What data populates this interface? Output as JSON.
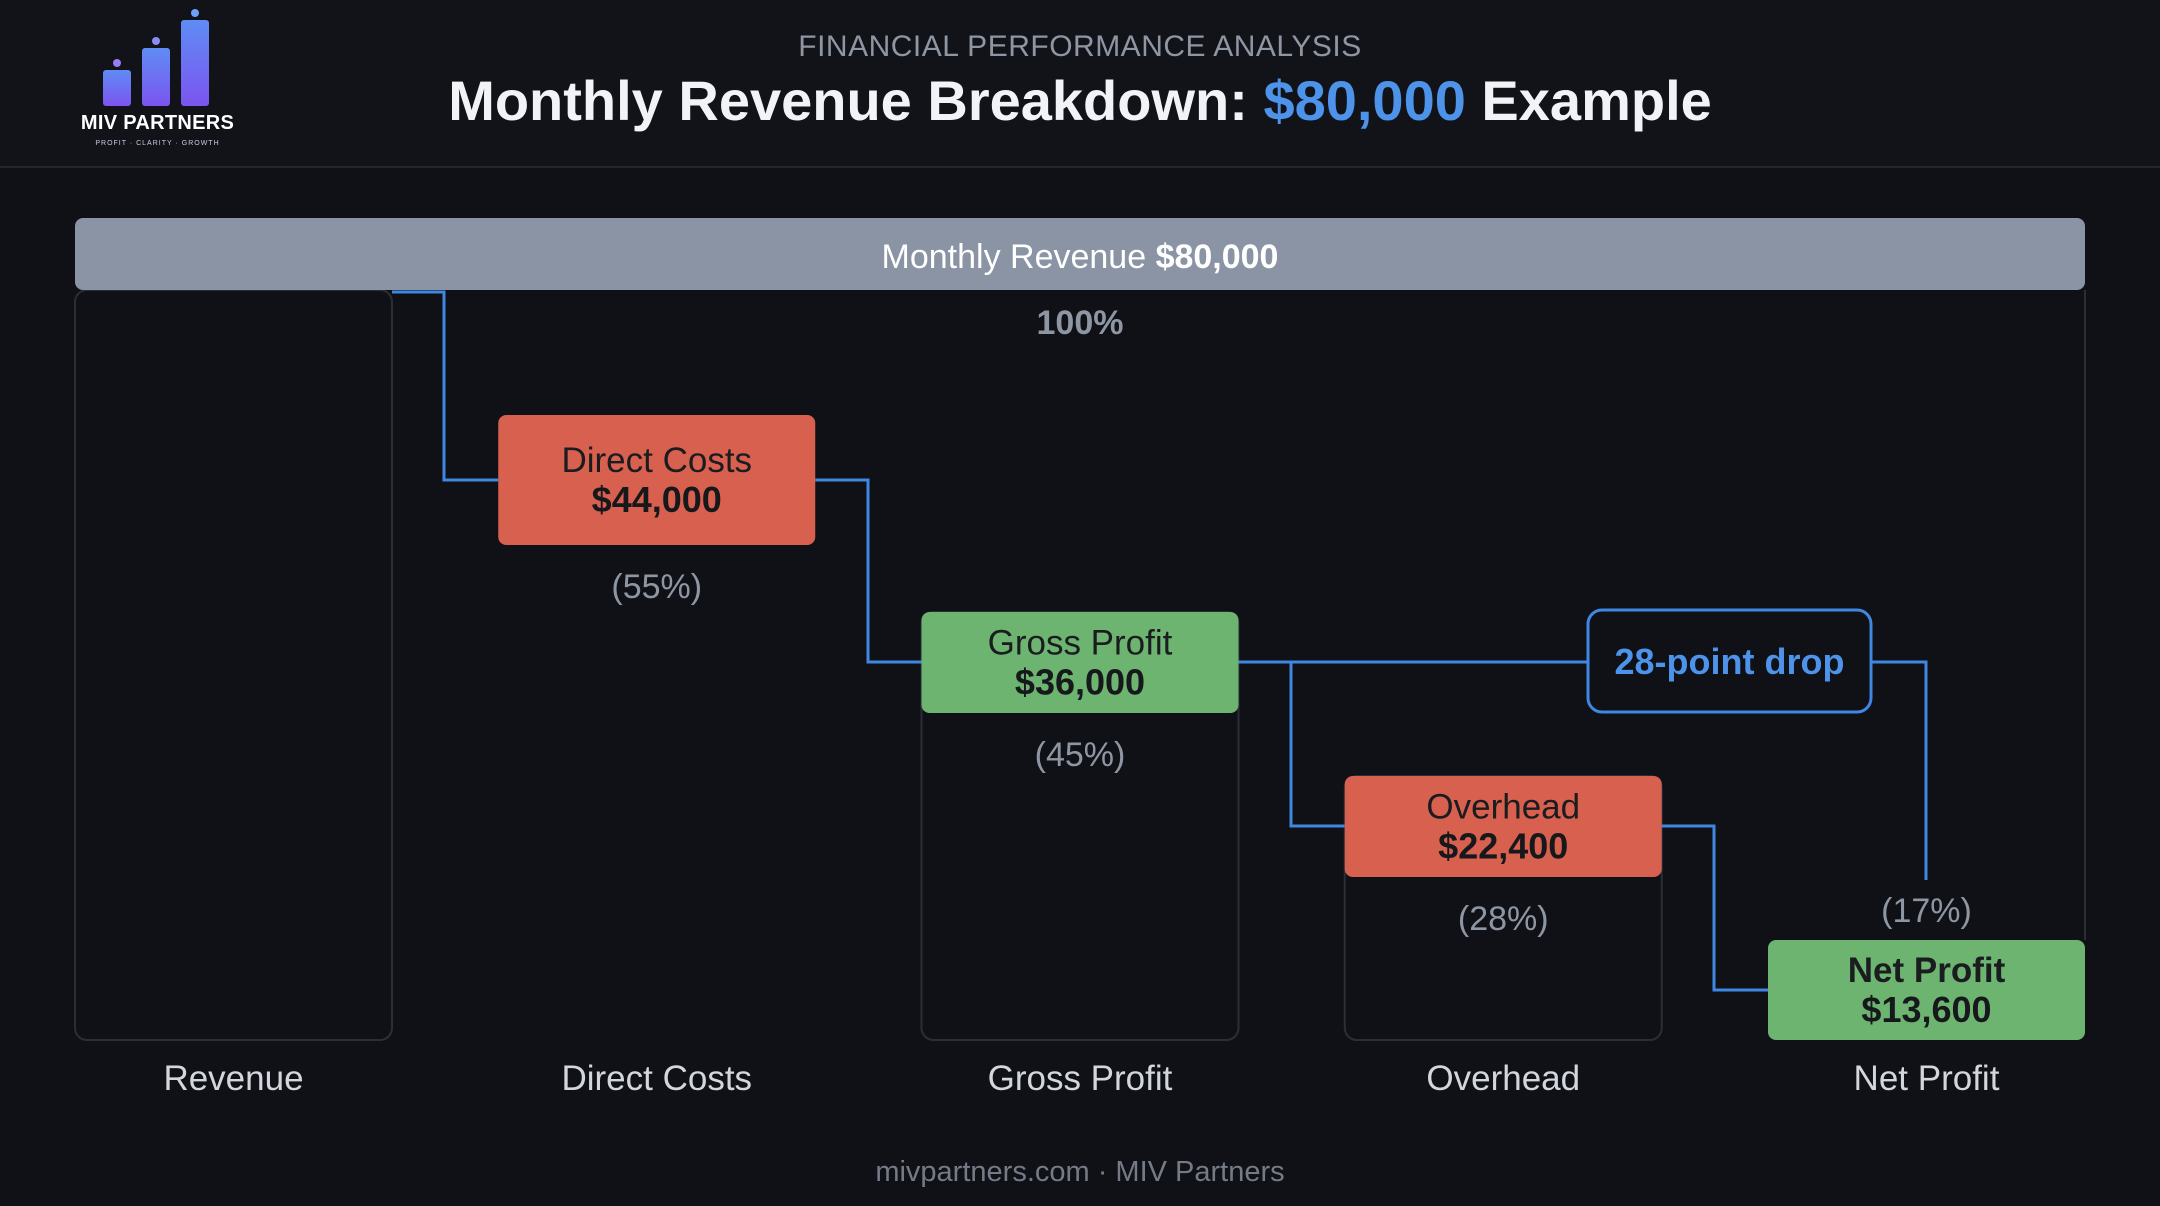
{
  "header": {
    "kicker": "FINANCIAL PERFORMANCE ANALYSIS",
    "title_prefix": "Monthly Revenue Breakdown: ",
    "title_highlight": "$80,000",
    "title_suffix": " Example"
  },
  "logo": {
    "name": "MIV PARTNERS",
    "tagline": "PROFIT · CLARITY · GROWTH",
    "icon": "bar-chart-icon"
  },
  "chart_data": {
    "type": "bar",
    "subtype": "waterfall",
    "title": "Monthly Revenue Breakdown: $80,000 Example",
    "total": 80000,
    "categories": [
      "Revenue",
      "Direct Costs",
      "Gross Profit",
      "Overhead",
      "Net Profit"
    ],
    "revenue_bar": {
      "label": "Monthly Revenue",
      "value_text": "$80,000",
      "percent_text": "100%"
    },
    "steps": [
      {
        "category": "Direct Costs",
        "label": "Direct Costs",
        "value": 44000,
        "value_text": "$44,000",
        "percent_text": "(55%)",
        "kind": "cost",
        "base": 36000
      },
      {
        "category": "Gross Profit",
        "label": "Gross Profit",
        "value": 36000,
        "value_text": "$36,000",
        "percent_text": "(45%)",
        "kind": "profit",
        "base": 0
      },
      {
        "category": "Overhead",
        "label": "Overhead",
        "value": 22400,
        "value_text": "$22,400",
        "percent_text": "(28%)",
        "kind": "cost",
        "base": 13600
      },
      {
        "category": "Net Profit",
        "label": "Net Profit",
        "value": 13600,
        "value_text": "$13,600",
        "percent_text": "(17%)",
        "kind": "profit",
        "base": 0
      }
    ],
    "callout": {
      "text": "28-point drop"
    },
    "colors": {
      "revenue": "#8a94a4",
      "cost": "#d8604f",
      "profit": "#6cb470",
      "connector": "#3f87e0",
      "outline": "#2a2e36",
      "label": "#d3d7dd",
      "percent": "#8f96a3"
    }
  },
  "footer": {
    "text": "mivpartners.com · MIV Partners"
  }
}
